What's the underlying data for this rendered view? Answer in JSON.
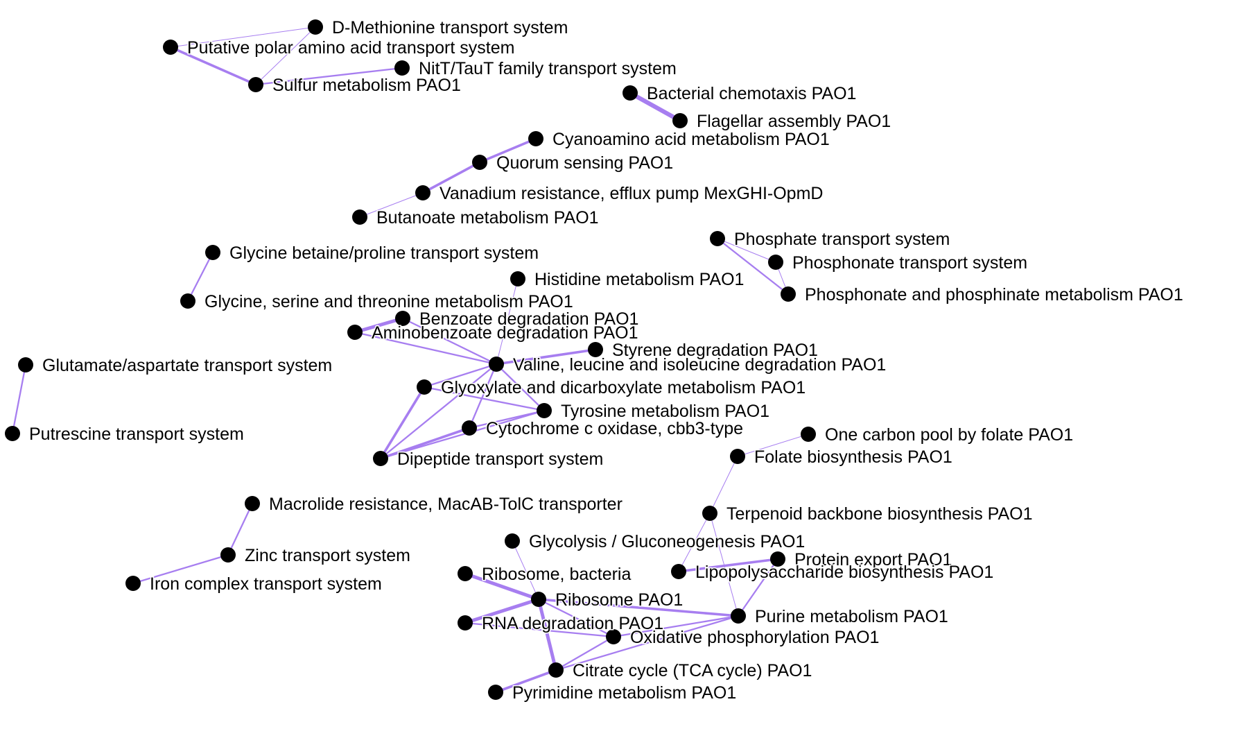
{
  "colors": {
    "edge": "#a77ef0",
    "node": "#000000",
    "label": "#000000",
    "background": "#ffffff"
  },
  "nodes": [
    {
      "id": "dmet",
      "label": "D-Methionine transport system"
    },
    {
      "id": "polar",
      "label": "Putative polar amino acid transport system"
    },
    {
      "id": "nitt",
      "label": "NitT/TauT family transport system"
    },
    {
      "id": "sulfur",
      "label": "Sulfur metabolism PAO1"
    },
    {
      "id": "chemo",
      "label": "Bacterial chemotaxis PAO1"
    },
    {
      "id": "flag",
      "label": "Flagellar assembly PAO1"
    },
    {
      "id": "cyano",
      "label": "Cyanoamino acid metabolism PAO1"
    },
    {
      "id": "quorum",
      "label": "Quorum sensing PAO1"
    },
    {
      "id": "vanad",
      "label": "Vanadium resistance, efflux pump MexGHI-OpmD"
    },
    {
      "id": "butan",
      "label": "Butanoate metabolism PAO1"
    },
    {
      "id": "phostr",
      "label": "Phosphate transport system"
    },
    {
      "id": "phontr",
      "label": "Phosphonate transport system"
    },
    {
      "id": "phonmet",
      "label": "Phosphonate and phosphinate metabolism PAO1"
    },
    {
      "id": "glybet",
      "label": "Glycine betaine/proline transport system"
    },
    {
      "id": "glyser",
      "label": "Glycine, serine and threonine metabolism PAO1"
    },
    {
      "id": "histi",
      "label": "Histidine metabolism PAO1"
    },
    {
      "id": "benzo",
      "label": "Benzoate degradation PAO1"
    },
    {
      "id": "amino",
      "label": "Aminobenzoate degradation PAO1"
    },
    {
      "id": "styr",
      "label": "Styrene degradation PAO1"
    },
    {
      "id": "valine",
      "label": "Valine, leucine and isoleucine degradation PAO1"
    },
    {
      "id": "glyox",
      "label": "Glyoxylate and dicarboxylate metabolism PAO1"
    },
    {
      "id": "tyro",
      "label": "Tyrosine metabolism PAO1"
    },
    {
      "id": "cytc",
      "label": "Cytochrome c oxidase, cbb3-type"
    },
    {
      "id": "dipep",
      "label": "Dipeptide transport system"
    },
    {
      "id": "gluasp",
      "label": "Glutamate/aspartate transport system"
    },
    {
      "id": "putr",
      "label": "Putrescine transport system"
    },
    {
      "id": "onec",
      "label": "One carbon pool by folate PAO1"
    },
    {
      "id": "folate",
      "label": "Folate biosynthesis PAO1"
    },
    {
      "id": "terp",
      "label": "Terpenoid backbone biosynthesis PAO1"
    },
    {
      "id": "macro",
      "label": "Macrolide resistance, MacAB-TolC transporter"
    },
    {
      "id": "zinc",
      "label": "Zinc transport system"
    },
    {
      "id": "iron",
      "label": "Iron complex transport system"
    },
    {
      "id": "glycol",
      "label": "Glycolysis / Gluconeogenesis PAO1"
    },
    {
      "id": "protexp",
      "label": "Protein export PAO1"
    },
    {
      "id": "lipo",
      "label": "Lipopolysaccharide biosynthesis PAO1"
    },
    {
      "id": "ribob",
      "label": "Ribosome, bacteria"
    },
    {
      "id": "ribo",
      "label": "Ribosome PAO1"
    },
    {
      "id": "purine",
      "label": "Purine metabolism PAO1"
    },
    {
      "id": "rnadeg",
      "label": "RNA degradation PAO1"
    },
    {
      "id": "oxphos",
      "label": "Oxidative phosphorylation PAO1"
    },
    {
      "id": "tca",
      "label": "Citrate cycle (TCA cycle) PAO1"
    },
    {
      "id": "pyrim",
      "label": "Pyrimidine metabolism PAO1"
    }
  ],
  "edges": [
    {
      "source": "dmet",
      "target": "polar",
      "weight": 1
    },
    {
      "source": "dmet",
      "target": "sulfur",
      "weight": 1
    },
    {
      "source": "polar",
      "target": "sulfur",
      "weight": 3
    },
    {
      "source": "sulfur",
      "target": "nitt",
      "weight": 2
    },
    {
      "source": "chemo",
      "target": "flag",
      "weight": 5
    },
    {
      "source": "cyano",
      "target": "quorum",
      "weight": 3
    },
    {
      "source": "quorum",
      "target": "vanad",
      "weight": 3
    },
    {
      "source": "vanad",
      "target": "butan",
      "weight": 1
    },
    {
      "source": "phostr",
      "target": "phontr",
      "weight": 1
    },
    {
      "source": "phostr",
      "target": "phonmet",
      "weight": 2
    },
    {
      "source": "phontr",
      "target": "phonmet",
      "weight": 1
    },
    {
      "source": "glybet",
      "target": "glyser",
      "weight": 2
    },
    {
      "source": "benzo",
      "target": "amino",
      "weight": 4
    },
    {
      "source": "histi",
      "target": "valine",
      "weight": 1
    },
    {
      "source": "benzo",
      "target": "valine",
      "weight": 2
    },
    {
      "source": "amino",
      "target": "valine",
      "weight": 2
    },
    {
      "source": "styr",
      "target": "valine",
      "weight": 3
    },
    {
      "source": "valine",
      "target": "glyox",
      "weight": 2
    },
    {
      "source": "valine",
      "target": "tyro",
      "weight": 2
    },
    {
      "source": "valine",
      "target": "cytc",
      "weight": 2
    },
    {
      "source": "valine",
      "target": "dipep",
      "weight": 2
    },
    {
      "source": "glyox",
      "target": "tyro",
      "weight": 2
    },
    {
      "source": "glyox",
      "target": "dipep",
      "weight": 3
    },
    {
      "source": "tyro",
      "target": "cytc",
      "weight": 2
    },
    {
      "source": "tyro",
      "target": "dipep",
      "weight": 2
    },
    {
      "source": "cytc",
      "target": "dipep",
      "weight": 3
    },
    {
      "source": "gluasp",
      "target": "putr",
      "weight": 2
    },
    {
      "source": "onec",
      "target": "folate",
      "weight": 1
    },
    {
      "source": "folate",
      "target": "terp",
      "weight": 1
    },
    {
      "source": "terp",
      "target": "lipo",
      "weight": 1
    },
    {
      "source": "terp",
      "target": "purine",
      "weight": 1
    },
    {
      "source": "macro",
      "target": "zinc",
      "weight": 2
    },
    {
      "source": "zinc",
      "target": "iron",
      "weight": 2
    },
    {
      "source": "glycol",
      "target": "ribo",
      "weight": 1
    },
    {
      "source": "lipo",
      "target": "protexp",
      "weight": 3
    },
    {
      "source": "protexp",
      "target": "purine",
      "weight": 2
    },
    {
      "source": "ribob",
      "target": "ribo",
      "weight": 4
    },
    {
      "source": "rnadeg",
      "target": "ribo",
      "weight": 4
    },
    {
      "source": "ribo",
      "target": "purine",
      "weight": 3
    },
    {
      "source": "ribo",
      "target": "oxphos",
      "weight": 2
    },
    {
      "source": "ribo",
      "target": "tca",
      "weight": 4
    },
    {
      "source": "purine",
      "target": "oxphos",
      "weight": 2
    },
    {
      "source": "purine",
      "target": "tca",
      "weight": 2
    },
    {
      "source": "rnadeg",
      "target": "oxphos",
      "weight": 2
    },
    {
      "source": "oxphos",
      "target": "tca",
      "weight": 2
    },
    {
      "source": "tca",
      "target": "pyrim",
      "weight": 3
    }
  ]
}
